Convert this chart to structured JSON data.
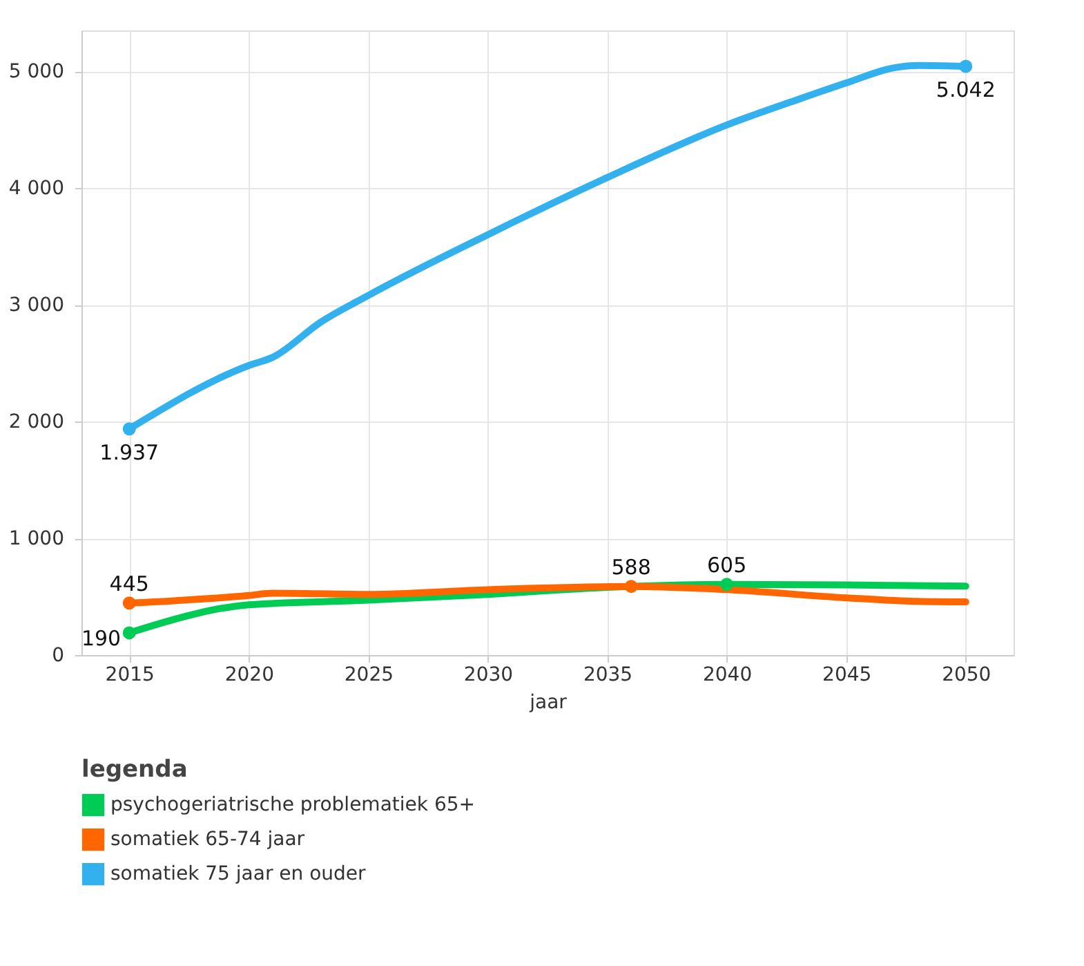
{
  "chart_data": {
    "type": "line",
    "xlabel": "jaar",
    "legend_title": "legenda",
    "legend": "bottom",
    "grid": true,
    "line_style": "solid",
    "xlim": [
      2013,
      2052
    ],
    "xticks": [
      2015,
      2020,
      2025,
      2030,
      2035,
      2040,
      2045,
      2050
    ],
    "ylim": [
      0,
      5350
    ],
    "yticks": [
      {
        "value": 0,
        "label": "0"
      },
      {
        "value": 1000,
        "label": "1 000"
      },
      {
        "value": 2000,
        "label": "2 000"
      },
      {
        "value": 3000,
        "label": "3 000"
      },
      {
        "value": 4000,
        "label": "4 000"
      },
      {
        "value": 5000,
        "label": "5 000"
      }
    ],
    "series": [
      {
        "name": "psychogeriatrische problematiek 65+",
        "color": "#00cc55",
        "x": [
          2015,
          2020,
          2025,
          2030,
          2035,
          2040,
          2045,
          2050
        ],
        "values": [
          190,
          430,
          470,
          520,
          580,
          605,
          600,
          590
        ],
        "value_labels": [
          "190",
          null,
          null,
          null,
          null,
          "605",
          null,
          null
        ]
      },
      {
        "name": "somatiek 65-74 jaar",
        "color": "#ff6600",
        "x": [
          2015,
          2020,
          2021,
          2025,
          2030,
          2036,
          2040,
          2045,
          2048,
          2050
        ],
        "values": [
          445,
          510,
          530,
          520,
          560,
          588,
          560,
          490,
          460,
          455
        ],
        "value_labels": [
          "445",
          null,
          null,
          null,
          null,
          "588",
          null,
          null,
          null,
          null
        ]
      },
      {
        "name": "somatiek 75 jaar en ouder",
        "color": "#33b0ee",
        "x": [
          2015,
          2020,
          2021,
          2023,
          2025,
          2030,
          2035,
          2040,
          2043,
          2045,
          2047,
          2048,
          2050
        ],
        "values": [
          1937,
          2480,
          2550,
          2850,
          3080,
          3600,
          4090,
          4540,
          4760,
          4900,
          5030,
          5050,
          5042
        ],
        "value_labels": [
          "1.937",
          null,
          null,
          null,
          null,
          null,
          null,
          null,
          null,
          null,
          null,
          null,
          "5.042"
        ]
      }
    ]
  }
}
